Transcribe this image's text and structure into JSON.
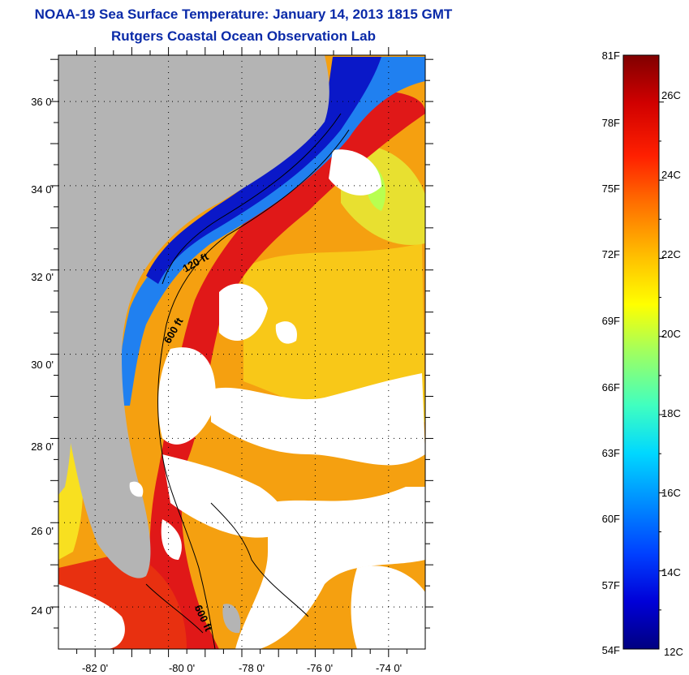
{
  "title": "NOAA-19 Sea Surface Temperature:  January 14, 2013 1815 GMT",
  "subtitle": "Rutgers Coastal Ocean Observation Lab",
  "map": {
    "lat_labels": [
      "36 0'",
      "34 0'",
      "32 0'",
      "30 0'",
      "28 0'",
      "26 0'",
      "24 0'"
    ],
    "lon_labels": [
      "-82 0'",
      "-80 0'",
      "-78 0'",
      "-76 0'",
      "-74 0'"
    ],
    "lat_range": [
      23,
      37.1
    ],
    "lon_range": [
      -83,
      -73
    ],
    "contour_labels": [
      "120 ft",
      "600 ft",
      "600 ft"
    ],
    "colors": {
      "land": "#b4b4b4",
      "cloud": "#ffffff",
      "coastal_cold": "#0a18c8",
      "shelf_cool": "#1e6ef0",
      "gulf_stream": "#e01818",
      "offshore_warm": "#f5a010"
    }
  },
  "colorbar": {
    "fahrenheit_labels": [
      "81F",
      "78F",
      "75F",
      "72F",
      "69F",
      "66F",
      "63F",
      "60F",
      "57F",
      "54F"
    ],
    "celsius_labels": [
      "26C",
      "24C",
      "22C",
      "20C",
      "18C",
      "16C",
      "14C",
      "12C"
    ],
    "range_celsius": [
      12,
      27.2
    ],
    "range_fahrenheit": [
      54,
      81
    ],
    "colormap": [
      "#000080",
      "#0000d8",
      "#0040ff",
      "#0090ff",
      "#00d8ff",
      "#40ffc0",
      "#a0ff60",
      "#ffff00",
      "#ffc000",
      "#ff7000",
      "#ff2000",
      "#d00000",
      "#800000"
    ]
  }
}
